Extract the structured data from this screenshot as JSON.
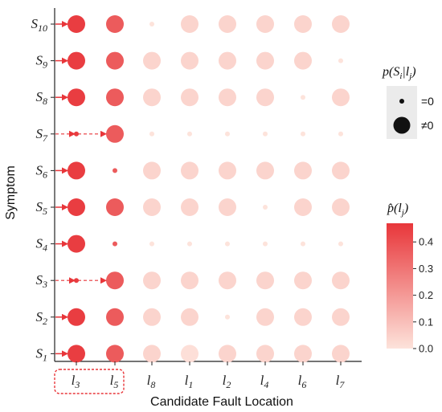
{
  "chart_data": {
    "type": "scatter",
    "xlabel": "Candidate Fault Location",
    "ylabel": "Symptom",
    "x_categories": [
      {
        "base": "l",
        "sub": "3"
      },
      {
        "base": "l",
        "sub": "5"
      },
      {
        "base": "l",
        "sub": "8"
      },
      {
        "base": "l",
        "sub": "1"
      },
      {
        "base": "l",
        "sub": "2"
      },
      {
        "base": "l",
        "sub": "4"
      },
      {
        "base": "l",
        "sub": "6"
      },
      {
        "base": "l",
        "sub": "7"
      }
    ],
    "y_categories": [
      {
        "base": "S",
        "sub": "1"
      },
      {
        "base": "S",
        "sub": "2"
      },
      {
        "base": "S",
        "sub": "3"
      },
      {
        "base": "S",
        "sub": "4"
      },
      {
        "base": "S",
        "sub": "5"
      },
      {
        "base": "S",
        "sub": "6"
      },
      {
        "base": "S",
        "sub": "7"
      },
      {
        "base": "S",
        "sub": "8"
      },
      {
        "base": "S",
        "sub": "9"
      },
      {
        "base": "S",
        "sub": "10"
      }
    ],
    "size_encoding": "p(S_i|l_j): small dot = 0, large dot ≠ 0",
    "color_encoding": "p̂(l_j)",
    "nonzero": [
      [
        1,
        1,
        1,
        1,
        1,
        1,
        1,
        1
      ],
      [
        1,
        1,
        1,
        1,
        0,
        1,
        1,
        1
      ],
      [
        0,
        1,
        1,
        1,
        1,
        1,
        1,
        1
      ],
      [
        1,
        0,
        0,
        0,
        0,
        0,
        0,
        0
      ],
      [
        1,
        1,
        1,
        1,
        1,
        0,
        1,
        1
      ],
      [
        1,
        0,
        1,
        1,
        1,
        1,
        1,
        1
      ],
      [
        0,
        1,
        0,
        0,
        0,
        0,
        0,
        0
      ],
      [
        1,
        1,
        1,
        1,
        1,
        1,
        0,
        1
      ],
      [
        1,
        1,
        1,
        1,
        1,
        1,
        1,
        0
      ],
      [
        1,
        1,
        0,
        1,
        1,
        1,
        1,
        1
      ]
    ],
    "probability": [
      [
        0.45,
        0.37,
        0.04,
        0.01,
        0.04,
        0.04,
        0.04,
        0.04
      ],
      [
        0.45,
        0.37,
        0.04,
        0.04,
        0.0,
        0.04,
        0.04,
        0.04
      ],
      [
        0.45,
        0.37,
        0.04,
        0.04,
        0.04,
        0.04,
        0.04,
        0.04
      ],
      [
        0.45,
        0.37,
        0.0,
        0.0,
        0.0,
        0.0,
        0.0,
        0.0
      ],
      [
        0.45,
        0.37,
        0.04,
        0.04,
        0.04,
        0.0,
        0.04,
        0.04
      ],
      [
        0.45,
        0.37,
        0.04,
        0.04,
        0.04,
        0.04,
        0.04,
        0.04
      ],
      [
        0.45,
        0.37,
        0.0,
        0.0,
        0.0,
        0.0,
        0.0,
        0.0
      ],
      [
        0.45,
        0.37,
        0.04,
        0.04,
        0.04,
        0.04,
        0.0,
        0.04
      ],
      [
        0.45,
        0.37,
        0.04,
        0.04,
        0.04,
        0.04,
        0.04,
        0.0
      ],
      [
        0.45,
        0.37,
        0.0,
        0.04,
        0.04,
        0.04,
        0.04,
        0.04
      ]
    ],
    "arrows": [
      {
        "row": 2,
        "direct": false
      },
      {
        "row": 6,
        "direct": false
      },
      {
        "row": 0,
        "direct": true
      },
      {
        "row": 1,
        "direct": true
      },
      {
        "row": 3,
        "direct": true
      },
      {
        "row": 4,
        "direct": true
      },
      {
        "row": 5,
        "direct": true
      },
      {
        "row": 7,
        "direct": true
      },
      {
        "row": 8,
        "direct": true
      },
      {
        "row": 9,
        "direct": true
      }
    ],
    "highlight_x": [
      0,
      1
    ],
    "size_legend": {
      "title": "p(S_i|l_j)",
      "title_base": "p(S",
      "title_i": "i",
      "title_mid": "|l",
      "title_j": "j",
      "title_end": ")",
      "items": [
        {
          "label": "=0",
          "nonzero": false
        },
        {
          "label": "≠0",
          "nonzero": true
        }
      ]
    },
    "colorbar": {
      "title": "p̂(l_j)",
      "title_base": "p̂(l",
      "title_j": "j",
      "title_end": ")",
      "range": [
        0.0,
        0.47
      ],
      "ticks": [
        0.0,
        0.1,
        0.2,
        0.3,
        0.4
      ],
      "tick_labels": [
        "0.0",
        "0.1",
        "0.2",
        "0.3",
        "0.4"
      ],
      "color_low": "#fde3db",
      "color_high": "#e8363a"
    }
  }
}
